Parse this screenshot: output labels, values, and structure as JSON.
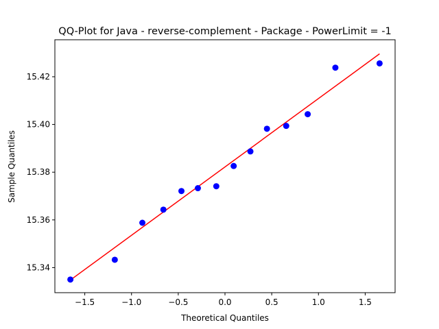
{
  "chart_data": {
    "type": "scatter",
    "title": "QQ-Plot for Java - reverse-complement - Package - PowerLimit = -1",
    "xlabel": "Theoretical Quantiles",
    "ylabel": "Sample Quantiles",
    "xlim": [
      -1.82,
      1.82
    ],
    "ylim": [
      15.3295,
      15.4355
    ],
    "xticks": [
      -1.5,
      -1.0,
      -0.5,
      0.0,
      0.5,
      1.0,
      1.5
    ],
    "xtick_labels": [
      "−1.5",
      "−1.0",
      "−0.5",
      "0.0",
      "0.5",
      "1.0",
      "1.5"
    ],
    "yticks": [
      15.34,
      15.36,
      15.38,
      15.4,
      15.42
    ],
    "ytick_labels": [
      "15.34",
      "15.36",
      "15.38",
      "15.40",
      "15.42"
    ],
    "grid": false,
    "points": {
      "color": "#0000ff",
      "x": [
        -1.654,
        -1.179,
        -0.884,
        -0.659,
        -0.466,
        -0.29,
        -0.093,
        0.093,
        0.272,
        0.449,
        0.655,
        0.885,
        1.181,
        1.654
      ],
      "y": [
        15.335,
        15.3433,
        15.3588,
        15.3643,
        15.3721,
        15.3733,
        15.3741,
        15.3826,
        15.3887,
        15.3982,
        15.3994,
        15.4043,
        15.4238,
        15.4256
      ]
    },
    "fit_line": {
      "color": "#ff0000",
      "x": [
        -1.654,
        1.654
      ],
      "y": [
        15.3348,
        15.4296
      ]
    }
  }
}
